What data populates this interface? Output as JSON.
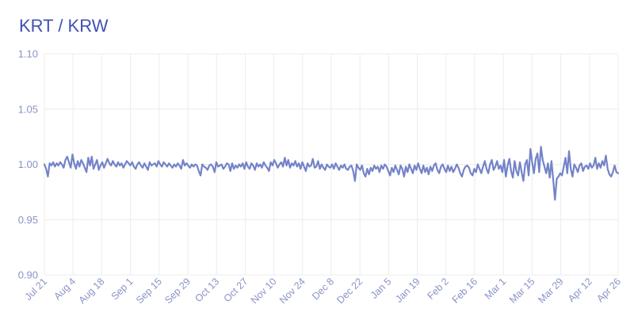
{
  "chart_data": {
    "type": "line",
    "title": "KRT / KRW",
    "xlabel": "",
    "ylabel": "",
    "ylim": [
      0.9,
      1.1
    ],
    "yticks": [
      "1.10",
      "1.05",
      "1.00",
      "0.95",
      "0.90"
    ],
    "xticks": [
      "Jul 21",
      "Aug 4",
      "Aug 18",
      "Sep 1",
      "Sep 15",
      "Sep 29",
      "Oct 13",
      "Oct 27",
      "Nov 10",
      "Nov 24",
      "Dec 8",
      "Dec 22",
      "Jan 5",
      "Jan 19",
      "Feb 2",
      "Feb 16",
      "Mar 1",
      "Mar 15",
      "Mar 29",
      "Apr 12",
      "Apr 26"
    ],
    "grid": true,
    "series": [
      {
        "color": "#7383c8",
        "values": [
          1.0,
          0.996,
          0.989,
          1.001,
          0.999,
          1.002,
          0.998,
          1.001,
          0.999,
          1.002,
          1.0,
          0.997,
          1.004,
          1.007,
          1.002,
          0.997,
          1.009,
          1.001,
          0.996,
          1.003,
          0.998,
          1.004,
          1.001,
          0.997,
          0.993,
          1.006,
          0.999,
          1.007,
          0.996,
          1.0,
          1.004,
          0.995,
          0.999,
          1.002,
          0.997,
          1.001,
          1.005,
          1.001,
          0.999,
          1.003,
          1.0,
          0.998,
          1.002,
          0.999,
          1.001,
          0.997,
          1.0,
          1.003,
          1.001,
          0.999,
          1.002,
          0.998,
          0.996,
          1.0,
          1.002,
          0.999,
          0.997,
          1.001,
          0.998,
          0.995,
          1.002,
          0.999,
          1.0,
          1.001,
          0.998,
          1.003,
          1.0,
          0.998,
          1.002,
          1.0,
          0.998,
          1.001,
          0.999,
          0.997,
          1.0,
          0.998,
          1.001,
          0.999,
          0.996,
          1.004,
          0.999,
          1.001,
          0.999,
          0.997,
          1.0,
          0.998,
          1.0,
          0.999,
          0.994,
          0.99,
          1.0,
          0.998,
          0.997,
          0.995,
          0.999,
          1.0,
          0.998,
          0.993,
          1.002,
          0.998,
          0.999,
          1.0,
          0.996,
          0.998,
          1.001,
          1.0,
          0.994,
          1.001,
          0.996,
          0.999,
          0.997,
          1.0,
          0.998,
          1.001,
          0.996,
          1.002,
          0.998,
          0.996,
          1.001,
          0.999,
          0.995,
          1.001,
          0.998,
          1.0,
          0.997,
          1.002,
          0.999,
          0.997,
          0.994,
          1.002,
          0.999,
          1.004,
          1.001,
          0.997,
          1.0,
          1.002,
          0.998,
          1.006,
          0.999,
          1.004,
          0.997,
          1.001,
          0.999,
          1.003,
          0.998,
          1.001,
          0.996,
          1.002,
          0.998,
          0.994,
          1.001,
          0.998,
          0.999,
          1.005,
          0.997,
          0.998,
          1.003,
          0.996,
          1.0,
          0.997,
          0.995,
          1.0,
          0.998,
          0.997,
          1.0,
          0.996,
          1.001,
          0.998,
          0.995,
          0.999,
          0.997,
          1.0,
          0.996,
          0.995,
          0.998,
          0.999,
          0.994,
          0.985,
          1.0,
          0.997,
          0.995,
          0.999,
          0.992,
          0.989,
          0.996,
          0.991,
          0.997,
          0.994,
          0.999,
          0.996,
          0.998,
          0.993,
          0.999,
          0.996,
          1.0,
          0.998,
          0.994,
          0.99,
          0.997,
          0.993,
          0.999,
          0.995,
          0.991,
          0.999,
          0.996,
          0.989,
          0.998,
          0.993,
          1.0,
          0.996,
          0.992,
          0.999,
          0.995,
          1.001,
          0.996,
          0.992,
          0.999,
          0.993,
          0.997,
          0.991,
          0.998,
          0.994,
          0.999,
          1.001,
          0.995,
          0.992,
          0.998,
          1.0,
          0.996,
          0.993,
          0.999,
          0.994,
          0.998,
          0.993,
          0.996,
          1.0,
          0.997,
          0.992,
          0.989,
          0.995,
          0.998,
          0.999,
          0.997,
          0.992,
          0.99,
          0.996,
          0.993,
          1.0,
          0.996,
          0.992,
          0.998,
          1.003,
          0.996,
          0.992,
          1.0,
          1.004,
          0.995,
          0.998,
          1.003,
          0.996,
          0.999,
          0.993,
          1.004,
          0.989,
          0.999,
          1.005,
          0.994,
          0.988,
          1.003,
          0.994,
          0.99,
          1.002,
          0.993,
          0.985,
          1.0,
          1.004,
          0.99,
          1.014,
          1.002,
          0.992,
          1.005,
          1.01,
          0.993,
          1.016,
          1.004,
          0.998,
          0.992,
          1.001,
          0.988,
          1.003,
          0.986,
          0.968,
          0.987,
          0.989,
          0.992,
          0.99,
          0.998,
          1.006,
          0.992,
          1.012,
          0.996,
          0.989,
          1.0,
          0.997,
          0.993,
          0.999,
          1.001,
          0.994,
          0.998,
          0.999,
          0.996,
          1.001,
          0.997,
          0.999,
          1.006,
          0.996,
          1.001,
          0.997,
          1.003,
          0.999,
          1.008,
          0.996,
          0.991,
          0.989,
          0.993,
          0.999,
          0.993,
          0.992
        ]
      }
    ]
  }
}
